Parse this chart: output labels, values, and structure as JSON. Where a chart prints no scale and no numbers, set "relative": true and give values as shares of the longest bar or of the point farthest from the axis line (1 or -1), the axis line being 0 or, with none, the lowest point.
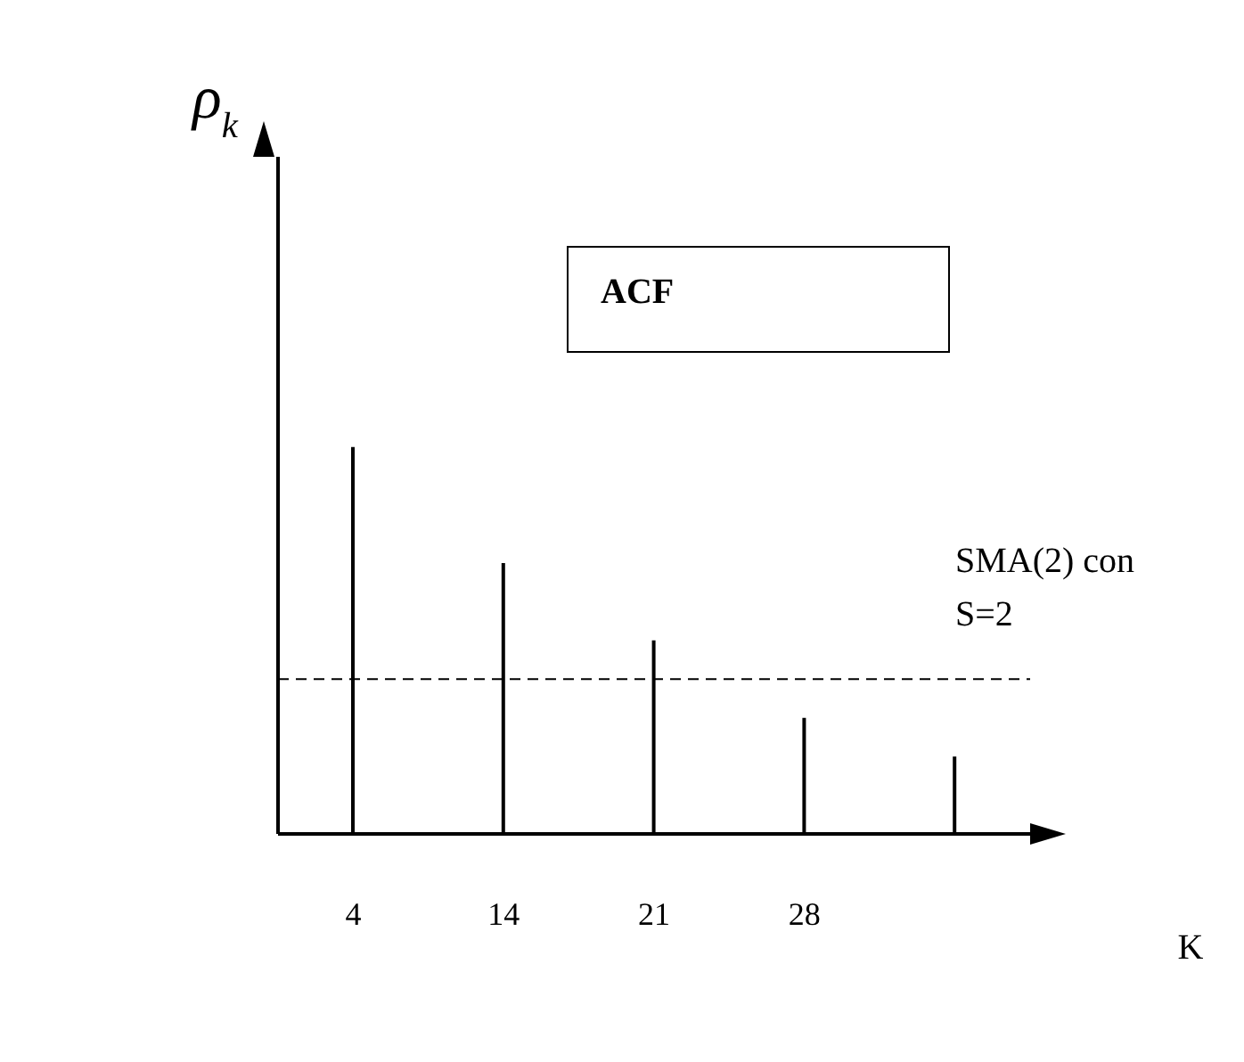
{
  "chart_data": {
    "type": "bar",
    "relative": true,
    "xlabel": "K",
    "categories": [
      "4",
      "14",
      "21",
      "28",
      null
    ],
    "values": [
      1,
      0.7,
      0.5,
      0.3,
      0.2
    ],
    "color": "#000000",
    "ref_lines": [
      {
        "axis": "y",
        "value": 0.4,
        "line_style": "dashed",
        "color": "#000000"
      }
    ],
    "annotations": [
      "ρ$_{k}$",
      "ACF",
      "SMA(2) con S=2"
    ]
  }
}
